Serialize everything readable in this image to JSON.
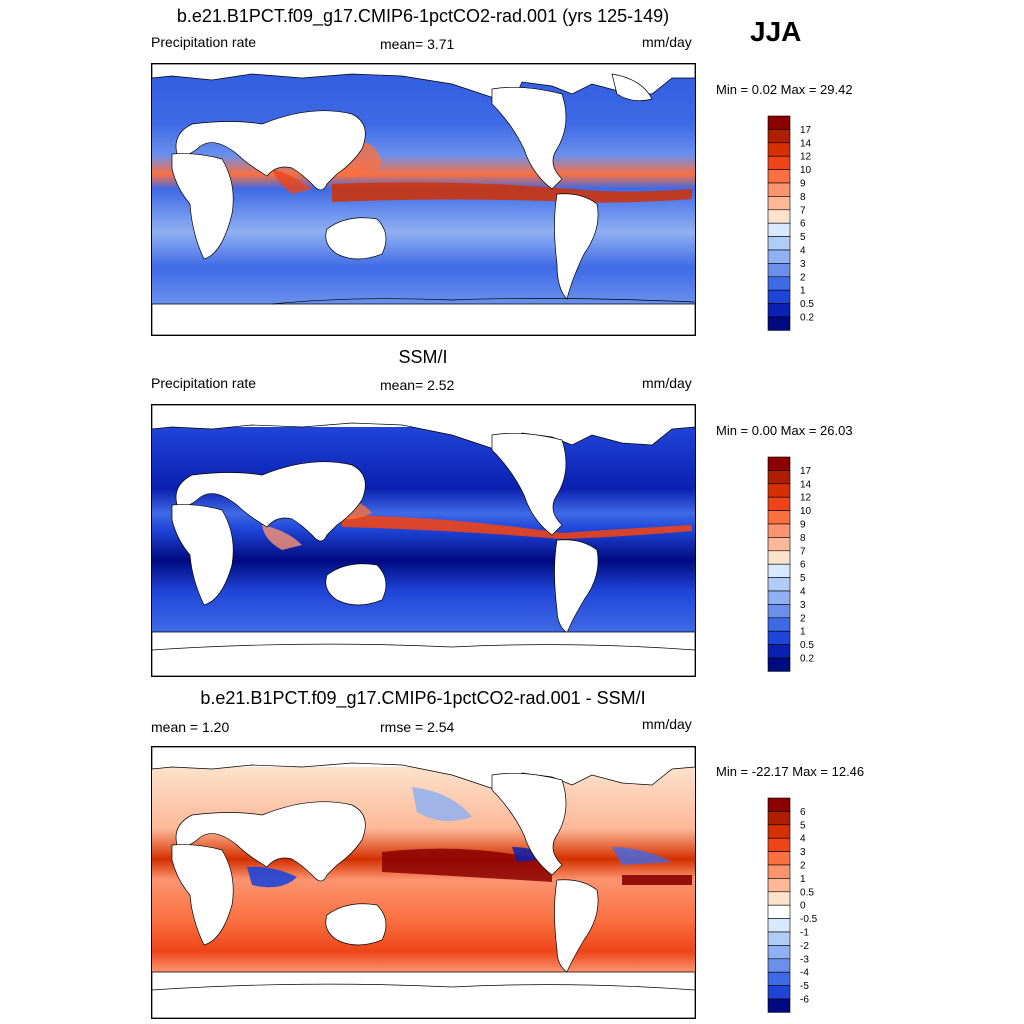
{
  "season": "JJA",
  "panels": [
    {
      "title": "b.e21.B1PCT.f09_g17.CMIP6-1pctCO2-rad.001 (yrs 125-149)",
      "left_label": "Precipitation rate",
      "center_label": "mean=   3.71",
      "units": "mm/day",
      "minmax": "Min =   0.02 Max =  29.42",
      "colorbar": {
        "labels": [
          "17",
          "14",
          "12",
          "10",
          "9",
          "8",
          "7",
          "6",
          "5",
          "4",
          "3",
          "2",
          "1",
          "0.5",
          "0.2"
        ],
        "colors": [
          "#8b0000",
          "#b01e00",
          "#d43000",
          "#ee4418",
          "#fa7040",
          "#fc9470",
          "#fdb898",
          "#fce2cc",
          "#d8e8ff",
          "#b2ccf8",
          "#8fb0f2",
          "#6a90ec",
          "#3f6ae6",
          "#1f45d8",
          "#0a20b0",
          "#000a80"
        ]
      }
    },
    {
      "title": "SSM/I",
      "left_label": "Precipitation rate",
      "center_label": "mean=   2.52",
      "units": "mm/day",
      "minmax": "Min =   0.00 Max =  26.03",
      "colorbar": {
        "labels": [
          "17",
          "14",
          "12",
          "10",
          "9",
          "8",
          "7",
          "6",
          "5",
          "4",
          "3",
          "2",
          "1",
          "0.5",
          "0.2"
        ],
        "colors": [
          "#8b0000",
          "#b01e00",
          "#d43000",
          "#ee4418",
          "#fa7040",
          "#fc9470",
          "#fdb898",
          "#fce2cc",
          "#d8e8ff",
          "#b2ccf8",
          "#8fb0f2",
          "#6a90ec",
          "#3f6ae6",
          "#1f45d8",
          "#0a20b0",
          "#000a80"
        ]
      }
    },
    {
      "title": "b.e21.B1PCT.f09_g17.CMIP6-1pctCO2-rad.001 - SSM/I",
      "left_label": "mean =   1.20",
      "center_label": "rmse =   2.54",
      "units": "mm/day",
      "minmax": "Min = -22.17 Max =  12.46",
      "colorbar": {
        "labels": [
          "6",
          "5",
          "4",
          "3",
          "2",
          "1",
          "0.5",
          "0",
          "-0.5",
          "-1",
          "-2",
          "-3",
          "-4",
          "-5",
          "-6"
        ],
        "colors": [
          "#8b0000",
          "#b01e00",
          "#d43000",
          "#ee4418",
          "#fa7040",
          "#fc9470",
          "#fdb898",
          "#fce2cc",
          "#ffffff",
          "#d8e8ff",
          "#b2ccf8",
          "#8fb0f2",
          "#6a90ec",
          "#3f6ae6",
          "#1f45d8",
          "#000a80"
        ]
      }
    }
  ]
}
